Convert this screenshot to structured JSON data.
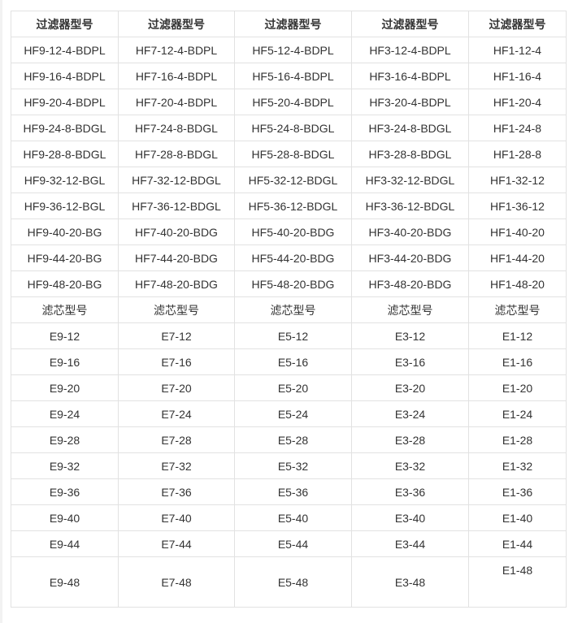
{
  "header": [
    "过滤器型号",
    "过滤器型号",
    "过滤器型号",
    "过滤器型号",
    "过滤器型号"
  ],
  "filter_rows": [
    [
      "HF9-12-4-BDPL",
      "HF7-12-4-BDPL",
      "HF5-12-4-BDPL",
      "HF3-12-4-BDPL",
      "HF1-12-4"
    ],
    [
      "HF9-16-4-BDPL",
      "HF7-16-4-BDPL",
      "HF5-16-4-BDPL",
      "HF3-16-4-BDPL",
      "HF1-16-4"
    ],
    [
      "HF9-20-4-BDPL",
      "HF7-20-4-BDPL",
      "HF5-20-4-BDPL",
      "HF3-20-4-BDPL",
      "HF1-20-4"
    ],
    [
      "HF9-24-8-BDGL",
      "HF7-24-8-BDGL",
      "HF5-24-8-BDGL",
      "HF3-24-8-BDGL",
      "HF1-24-8"
    ],
    [
      "HF9-28-8-BDGL",
      "HF7-28-8-BDGL",
      "HF5-28-8-BDGL",
      "HF3-28-8-BDGL",
      "HF1-28-8"
    ],
    [
      "HF9-32-12-BGL",
      "HF7-32-12-BDGL",
      "HF5-32-12-BDGL",
      "HF3-32-12-BDGL",
      "HF1-32-12"
    ],
    [
      "HF9-36-12-BGL",
      "HF7-36-12-BDGL",
      "HF5-36-12-BDGL",
      "HF3-36-12-BDGL",
      "HF1-36-12"
    ],
    [
      "HF9-40-20-BG",
      "HF7-40-20-BDG",
      "HF5-40-20-BDG",
      "HF3-40-20-BDG",
      "HF1-40-20"
    ],
    [
      "HF9-44-20-BG",
      "HF7-44-20-BDG",
      "HF5-44-20-BDG",
      "HF3-44-20-BDG",
      "HF1-44-20"
    ],
    [
      "HF9-48-20-BG",
      "HF7-48-20-BDG",
      "HF5-48-20-BDG",
      "HF3-48-20-BDG",
      "HF1-48-20"
    ]
  ],
  "element_header": [
    "滤芯型号",
    "滤芯型号",
    "滤芯型号",
    "滤芯型号",
    "滤芯型号"
  ],
  "element_rows": [
    [
      "E9-12",
      "E7-12",
      "E5-12",
      "E3-12",
      "E1-12"
    ],
    [
      "E9-16",
      "E7-16",
      "E5-16",
      "E3-16",
      "E1-16"
    ],
    [
      "E9-20",
      "E7-20",
      "E5-20",
      "E3-20",
      "E1-20"
    ],
    [
      "E9-24",
      "E7-24",
      "E5-24",
      "E3-24",
      "E1-24"
    ],
    [
      "E9-28",
      "E7-28",
      "E5-28",
      "E3-28",
      "E1-28"
    ],
    [
      "E9-32",
      "E7-32",
      "E5-32",
      "E3-32",
      "E1-32"
    ],
    [
      "E9-36",
      "E7-36",
      "E5-36",
      "E3-36",
      "E1-36"
    ],
    [
      "E9-40",
      "E7-40",
      "E5-40",
      "E3-40",
      "E1-40"
    ],
    [
      "E9-44",
      "E7-44",
      "E5-44",
      "E3-44",
      "E1-44"
    ],
    [
      "E9-48",
      "E7-48",
      "E5-48",
      "E3-48",
      "E1-48"
    ]
  ]
}
